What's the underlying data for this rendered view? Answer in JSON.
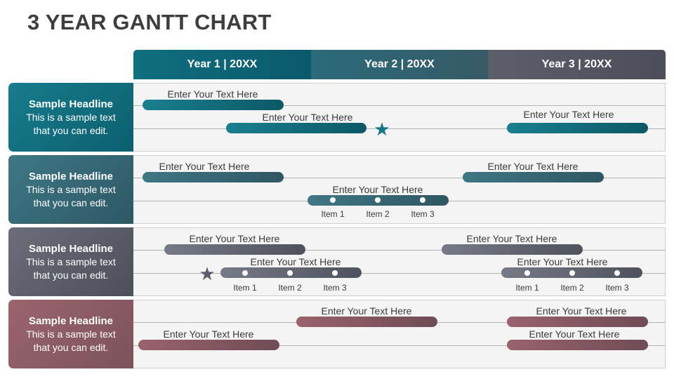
{
  "title": "3 YEAR GANTT CHART",
  "years": [
    "Year 1 | 20XX",
    "Year 2 | 20XX",
    "Year 3 | 20XX"
  ],
  "colors": {
    "teal": "#0f6e80",
    "slate": "#36606c",
    "grey": "#5c5f6a",
    "rose": "#8f5d67"
  },
  "rows": [
    {
      "headline": "Sample Headline",
      "sub1": "This is a sample text",
      "sub2": "that you can edit.",
      "tasks": [
        {
          "label": "Enter Your Text Here"
        },
        {
          "label": "Enter Your Text Here"
        },
        {
          "label": "Enter Your Text Here"
        }
      ],
      "star_icon": "star-icon"
    },
    {
      "headline": "Sample Headline",
      "sub1": "This is a sample text",
      "sub2": "that you can edit.",
      "tasks": [
        {
          "label": "Enter Your Text Here"
        },
        {
          "label": "Enter Your Text Here"
        },
        {
          "label": "Enter Your Text Here",
          "items": [
            "Item 1",
            "Item 2",
            "Item 3"
          ]
        }
      ]
    },
    {
      "headline": "Sample Headline",
      "sub1": "This is a sample text",
      "sub2": "that you can edit.",
      "tasks": [
        {
          "label": "Enter Your Text Here"
        },
        {
          "label": "Enter Your Text Here"
        },
        {
          "label": "Enter Your Text Here",
          "items": [
            "Item 1",
            "Item 2",
            "Item 3"
          ]
        },
        {
          "label": "Enter Your Text Here",
          "items": [
            "Item 1",
            "Item 2",
            "Item 3"
          ]
        }
      ],
      "star_icon": "star-icon"
    },
    {
      "headline": "Sample Headline",
      "sub1": "This is a sample text",
      "sub2": "that you can edit.",
      "tasks": [
        {
          "label": "Enter Your Text Here"
        },
        {
          "label": "Enter Your Text Here"
        },
        {
          "label": "Enter Your Text Here"
        },
        {
          "label": "Enter Your Text Here"
        }
      ]
    }
  ]
}
